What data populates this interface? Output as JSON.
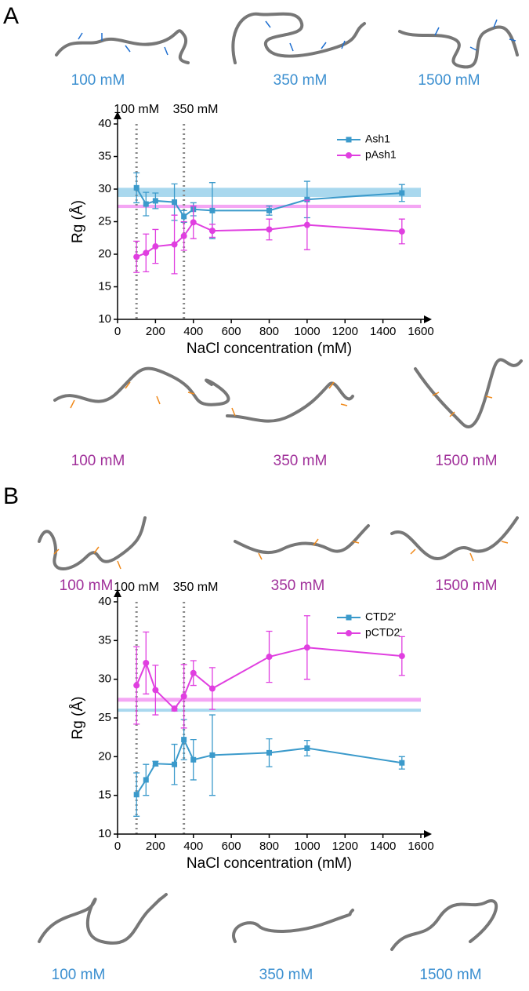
{
  "chart_data": [
    {
      "type": "line",
      "panel": "A",
      "xlabel": "NaCl concentration (mM)",
      "ylabel": "Rg (Å)",
      "xlim": [
        0,
        1600
      ],
      "ylim": [
        10,
        40
      ],
      "xticks": [
        0,
        200,
        400,
        600,
        800,
        1000,
        1200,
        1400,
        1600
      ],
      "yticks": [
        10,
        15,
        20,
        25,
        30,
        35,
        40
      ],
      "legend": "upper right",
      "x": [
        100,
        150,
        200,
        300,
        350,
        400,
        500,
        800,
        1000,
        1500
      ],
      "series": [
        {
          "name": "Ash1",
          "color": "#3b9acb",
          "marker": "square",
          "values": [
            30.2,
            27.7,
            28.2,
            28.0,
            25.8,
            26.9,
            26.7,
            26.7,
            28.4,
            29.4
          ],
          "errors": [
            2.3,
            1.8,
            1.2,
            2.8,
            0.9,
            1.0,
            4.3,
            0.7,
            2.8,
            1.3
          ],
          "band": [
            28.8,
            30.2
          ],
          "band_color": "#a9d8ee"
        },
        {
          "name": "pAsh1",
          "color": "#e03fe0",
          "marker": "circle",
          "values": [
            19.6,
            20.2,
            21.2,
            21.5,
            22.8,
            24.9,
            23.6,
            23.8,
            24.5,
            23.5
          ],
          "errors": [
            2.4,
            2.9,
            2.6,
            4.5,
            2.2,
            2.5,
            1.0,
            1.6,
            3.8,
            1.9
          ],
          "band": [
            27.1,
            27.6
          ],
          "band_color": "#f4a6f4"
        }
      ],
      "vlines": [
        {
          "value": 100,
          "label": "100 mM"
        },
        {
          "value": 350,
          "label": "350 mM"
        }
      ],
      "structures_top": {
        "color": "#3b8fd0",
        "labels": [
          "100 mM",
          "350 mM",
          "1500 mM"
        ]
      },
      "structures_bottom": {
        "color": "#a0309a",
        "labels": [
          "100 mM",
          "350 mM",
          "1500 mM"
        ]
      }
    },
    {
      "type": "line",
      "panel": "B",
      "xlabel": "NaCl concentration (mM)",
      "ylabel": "Rg (Å)",
      "xlim": [
        0,
        1600
      ],
      "ylim": [
        10,
        40
      ],
      "xticks": [
        0,
        200,
        400,
        600,
        800,
        1000,
        1200,
        1400,
        1600
      ],
      "yticks": [
        10,
        15,
        20,
        25,
        30,
        35,
        40
      ],
      "legend": "upper right",
      "x": [
        100,
        150,
        200,
        300,
        350,
        400,
        500,
        800,
        1000,
        1500
      ],
      "series": [
        {
          "name": "CTD2'",
          "color": "#3b9acb",
          "marker": "square",
          "values": [
            15.1,
            17.0,
            19.1,
            19.0,
            22.2,
            19.6,
            20.2,
            20.5,
            21.1,
            19.2
          ],
          "errors": [
            2.8,
            2.0,
            0.3,
            2.6,
            2.6,
            2.6,
            5.2,
            1.8,
            1.0,
            0.8
          ],
          "band": [
            25.8,
            26.2
          ],
          "band_color": "#a9d8ee"
        },
        {
          "name": "pCTD2'",
          "color": "#e03fe0",
          "marker": "circle",
          "values": [
            29.2,
            32.1,
            28.6,
            26.2,
            27.8,
            30.8,
            28.8,
            32.9,
            34.1,
            33.0
          ],
          "errors": [
            5.0,
            4.0,
            3.2,
            0.3,
            4.1,
            1.6,
            2.7,
            3.3,
            4.1,
            2.5
          ],
          "band": [
            27.1,
            27.6
          ],
          "band_color": "#f4a6f4"
        }
      ],
      "vlines": [
        {
          "value": 100,
          "label": "100 mM"
        },
        {
          "value": 350,
          "label": "350 mM"
        }
      ],
      "structures_top": {
        "color": "#a0309a",
        "labels": [
          "100 mM",
          "350 mM",
          "1500 mM"
        ]
      },
      "structures_bottom": {
        "color": "#3b8fd0",
        "labels": [
          "100 mM",
          "350 mM",
          "1500 mM"
        ]
      }
    }
  ]
}
